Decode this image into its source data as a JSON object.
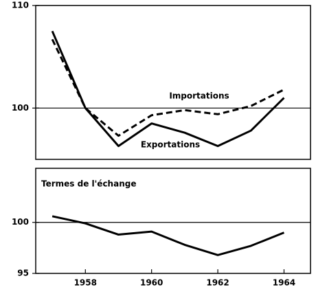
{
  "chart_data": [
    {
      "type": "line",
      "x": [
        1957,
        1958,
        1959,
        1960,
        1961,
        1962,
        1963,
        1964
      ],
      "xlim": [
        1956.5,
        1964.8
      ],
      "ylim": [
        95,
        110
      ],
      "yticks": [
        100,
        110
      ],
      "reference_line": 100,
      "series": [
        {
          "name": "Importations",
          "color": "#000000",
          "line_style": "dashed",
          "values": [
            106.7,
            100,
            97.3,
            99.3,
            99.8,
            99.4,
            100.2,
            101.8
          ]
        },
        {
          "name": "Exportations",
          "color": "#000000",
          "line_style": "solid",
          "values": [
            107.5,
            100,
            96.3,
            98.5,
            97.6,
            96.3,
            97.8,
            101
          ]
        }
      ]
    },
    {
      "type": "line",
      "title": "Termes de l'échange",
      "x": [
        1957,
        1958,
        1959,
        1960,
        1961,
        1962,
        1963,
        1964
      ],
      "xlim": [
        1956.5,
        1964.8
      ],
      "xticks": [
        1958,
        1960,
        1962,
        1964
      ],
      "ylim": [
        95,
        105.3
      ],
      "yticks": [
        95,
        100
      ],
      "reference_line": 100,
      "series": [
        {
          "color": "#000000",
          "line_style": "solid",
          "values": [
            100.6,
            99.9,
            98.8,
            99.1,
            97.8,
            96.8,
            97.7,
            99.0
          ]
        }
      ]
    }
  ]
}
